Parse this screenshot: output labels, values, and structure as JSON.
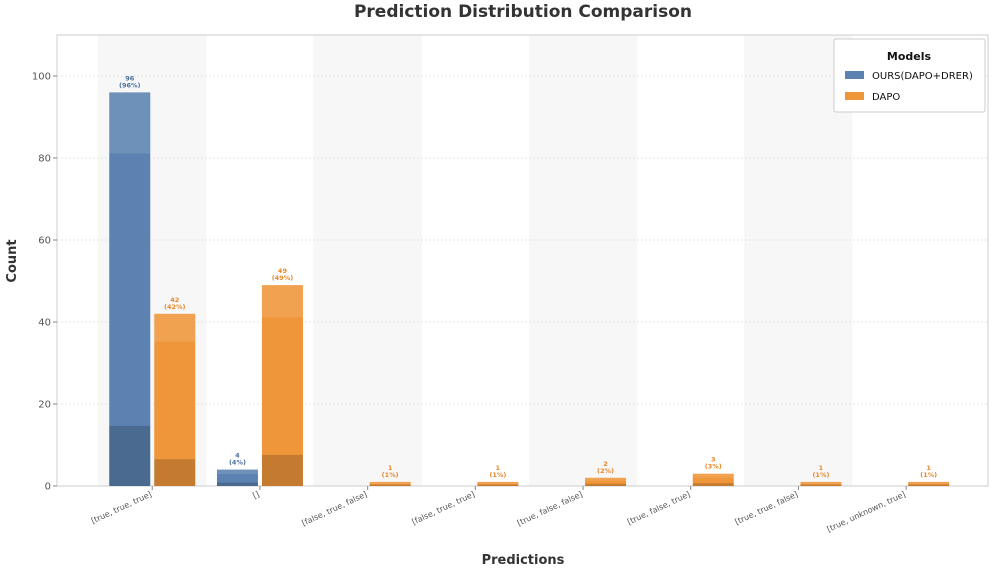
{
  "chart_data": {
    "type": "bar",
    "title": "Prediction Distribution Comparison",
    "xlabel": "Predictions",
    "ylabel": "Count",
    "ylim": [
      0,
      110
    ],
    "yticks": [
      0,
      20,
      40,
      60,
      80,
      100
    ],
    "grid": true,
    "legend": {
      "title": "Models",
      "placement": "top-right"
    },
    "categories": [
      "[true, true, true]",
      "[]",
      "[false, true, false]",
      "[false, true, true]",
      "[true, false, false]",
      "[true, false, true]",
      "[true, true, false]",
      "[true, unknown, true]"
    ],
    "series": [
      {
        "name": "OURS(DAPO+DRER)",
        "color": "#5b82b0",
        "values": [
          96,
          4,
          0,
          0,
          0,
          0,
          0,
          0
        ],
        "labels": [
          "96",
          "4",
          "",
          "",
          "",
          "",
          "",
          ""
        ],
        "pct_labels": [
          "(96%)",
          "(4%)",
          "",
          "",
          "",
          "",
          "",
          ""
        ]
      },
      {
        "name": "DAPO",
        "color": "#f0963a",
        "values": [
          42,
          49,
          1,
          1,
          2,
          3,
          1,
          1
        ],
        "labels": [
          "42",
          "49",
          "1",
          "1",
          "2",
          "3",
          "1",
          "1"
        ],
        "pct_labels": [
          "(42%)",
          "(49%)",
          "(1%)",
          "(1%)",
          "(2%)",
          "(3%)",
          "(1%)",
          "(1%)"
        ]
      }
    ]
  }
}
